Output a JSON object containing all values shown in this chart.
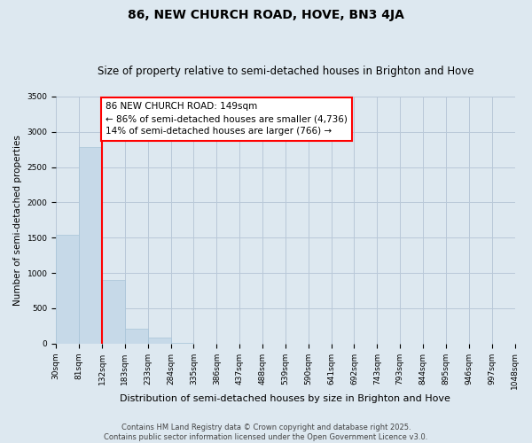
{
  "title": "86, NEW CHURCH ROAD, HOVE, BN3 4JA",
  "subtitle": "Size of property relative to semi-detached houses in Brighton and Hove",
  "xlabel": "Distribution of semi-detached houses by size in Brighton and Hove",
  "ylabel": "Number of semi-detached properties",
  "bar_values": [
    1540,
    2780,
    900,
    210,
    90,
    10,
    0,
    0,
    0,
    0,
    0,
    0,
    0,
    0,
    0,
    0,
    0,
    0,
    0
  ],
  "bin_labels": [
    "30sqm",
    "81sqm",
    "132sqm",
    "183sqm",
    "233sqm",
    "284sqm",
    "335sqm",
    "386sqm",
    "437sqm",
    "488sqm",
    "539sqm",
    "590sqm",
    "641sqm",
    "692sqm",
    "743sqm",
    "793sqm",
    "844sqm",
    "895sqm",
    "946sqm",
    "997sqm",
    "1048sqm"
  ],
  "bar_color": "#c6d9e8",
  "bar_edge_color": "#a8c4d8",
  "vline_x": 2,
  "vline_color": "red",
  "annotation_title": "86 NEW CHURCH ROAD: 149sqm",
  "annotation_line1": "← 86% of semi-detached houses are smaller (4,736)",
  "annotation_line2": "14% of semi-detached houses are larger (766) →",
  "annotation_box_color": "white",
  "annotation_box_edge_color": "red",
  "ylim": [
    0,
    3500
  ],
  "yticks": [
    0,
    500,
    1000,
    1500,
    2000,
    2500,
    3000,
    3500
  ],
  "grid_color": "#b8c8d8",
  "background_color": "#dde8f0",
  "footnote1": "Contains HM Land Registry data © Crown copyright and database right 2025.",
  "footnote2": "Contains public sector information licensed under the Open Government Licence v3.0.",
  "title_fontsize": 10,
  "subtitle_fontsize": 8.5,
  "xlabel_fontsize": 8,
  "ylabel_fontsize": 7.5,
  "tick_fontsize": 6.5,
  "annotation_fontsize": 7.5,
  "footnote_fontsize": 6
}
